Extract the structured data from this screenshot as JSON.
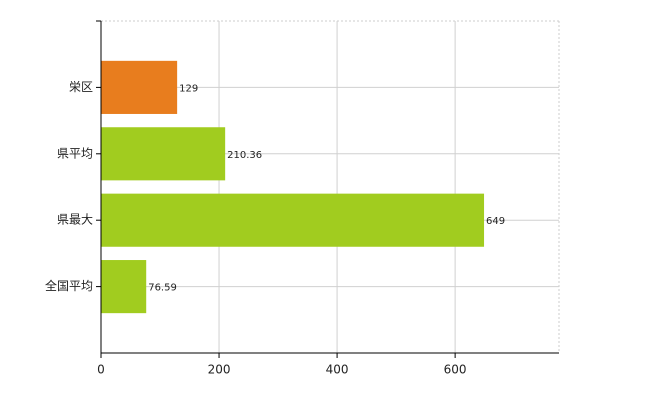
{
  "chart_data": {
    "type": "barh",
    "categories": [
      "栄区",
      "県平均",
      "県最大",
      "全国平均"
    ],
    "values": [
      129,
      210.36,
      649,
      76.59
    ],
    "colors": [
      "#e87d1e",
      "#a1cc1f",
      "#a1cc1f",
      "#a1cc1f"
    ],
    "xlim": [
      0,
      776
    ],
    "xticks": [
      0,
      200,
      400,
      600
    ],
    "grid": true
  }
}
